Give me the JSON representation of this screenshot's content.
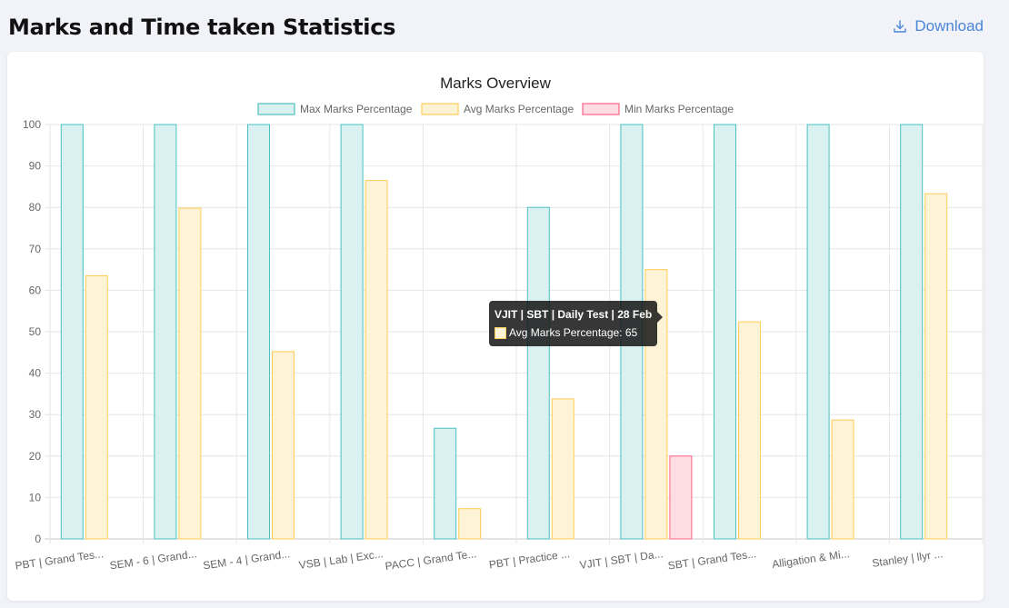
{
  "header": {
    "title": "Marks and Time taken Statistics",
    "download_label": "Download"
  },
  "tooltip": {
    "title": "VJIT | SBT | Daily Test | 28 Feb",
    "label": "Avg Marks Percentage: 65"
  },
  "chart_data": {
    "type": "bar",
    "title": "Marks Overview",
    "xlabel": "",
    "ylabel": "",
    "ylim": [
      0,
      100
    ],
    "yticks": [
      0,
      10,
      20,
      30,
      40,
      50,
      60,
      70,
      80,
      90,
      100
    ],
    "grid": true,
    "legend_position": "top",
    "categories": [
      "PBT | Grand Tes...",
      "SEM - 6 | Grand...",
      "SEM - 4 | Grand...",
      "VSB | Lab | Exc...",
      "PACC | Grand Te...",
      "PBT | Practice ...",
      "VJIT | SBT | Da...",
      "SBT | Grand Tes...",
      "Alligation & Mi...",
      "Stanley | llyr ..."
    ],
    "series": [
      {
        "name": "Max Marks Percentage",
        "fill": "#d9f1f1",
        "stroke": "#4bc0c0",
        "values": [
          100,
          100,
          100,
          100,
          26.7,
          80,
          100,
          100,
          100,
          100
        ]
      },
      {
        "name": "Avg Marks Percentage",
        "fill": "#fff3d6",
        "stroke": "#ffcd56",
        "values": [
          63.5,
          79.8,
          45.2,
          86.5,
          7.3,
          33.8,
          65,
          52.4,
          28.7,
          83.3
        ]
      },
      {
        "name": "Min Marks Percentage",
        "fill": "#ffdbe2",
        "stroke": "#ff6384",
        "values": [
          0,
          0,
          0,
          0,
          0,
          0,
          20,
          0,
          0,
          0
        ]
      }
    ]
  }
}
